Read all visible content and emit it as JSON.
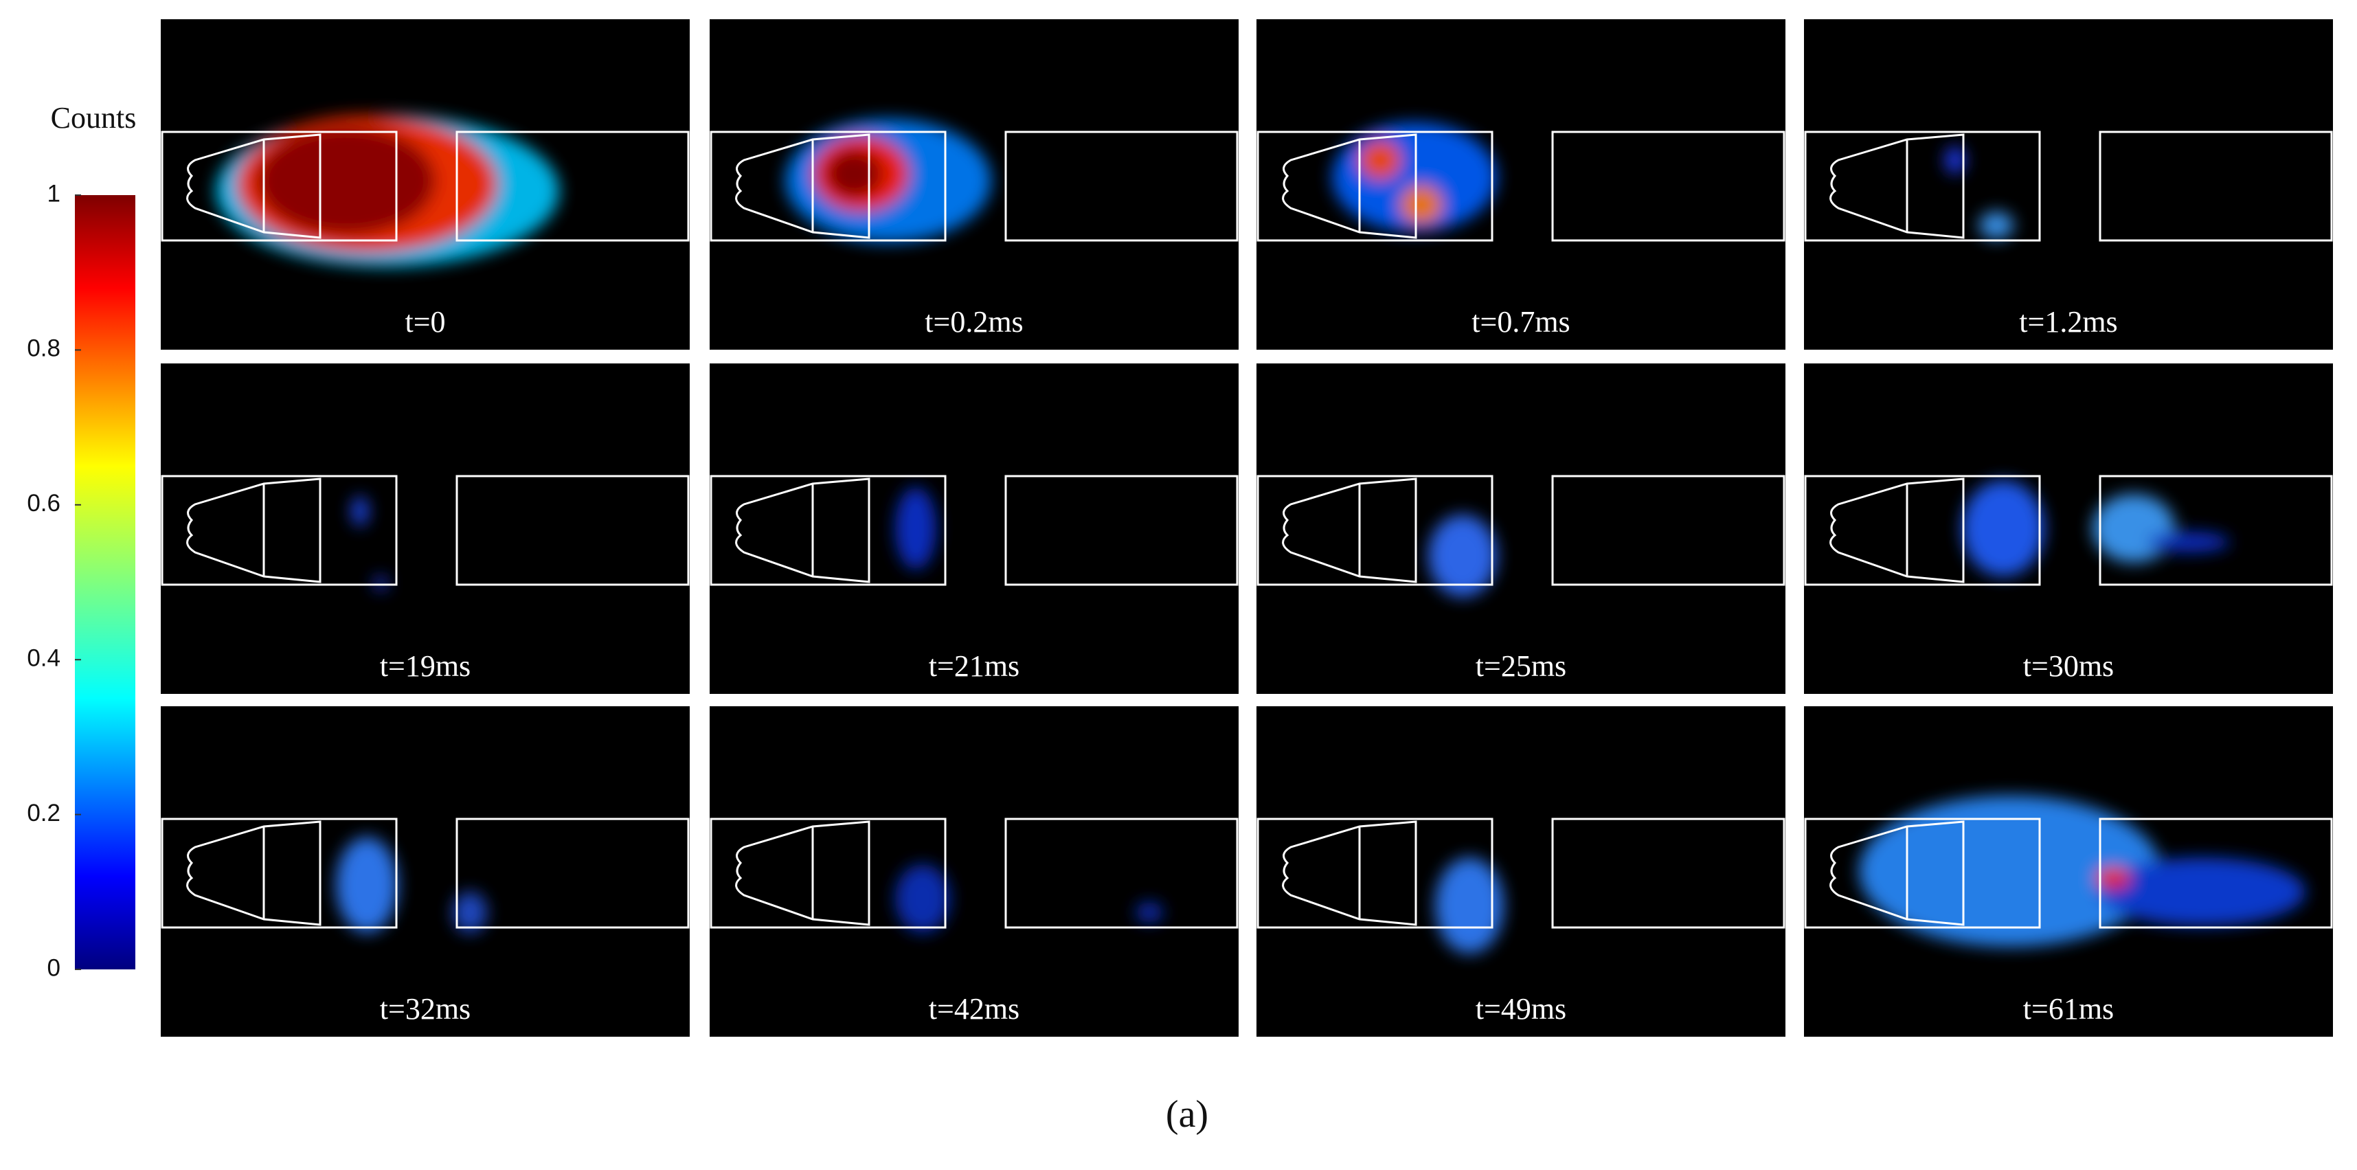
{
  "colorbar": {
    "title": "Counts",
    "lim": [
      0,
      1
    ],
    "ticks": [
      0,
      0.2,
      0.4,
      0.6,
      0.8,
      1
    ]
  },
  "panels": [
    "t=0",
    "t=0.2ms",
    "t=0.7ms",
    "t=1.2ms",
    "t=19ms",
    "t=21ms",
    "t=25ms",
    "t=30ms",
    "t=32ms",
    "t=42ms",
    "t=49ms",
    "t=61ms"
  ],
  "caption": "(a)"
}
